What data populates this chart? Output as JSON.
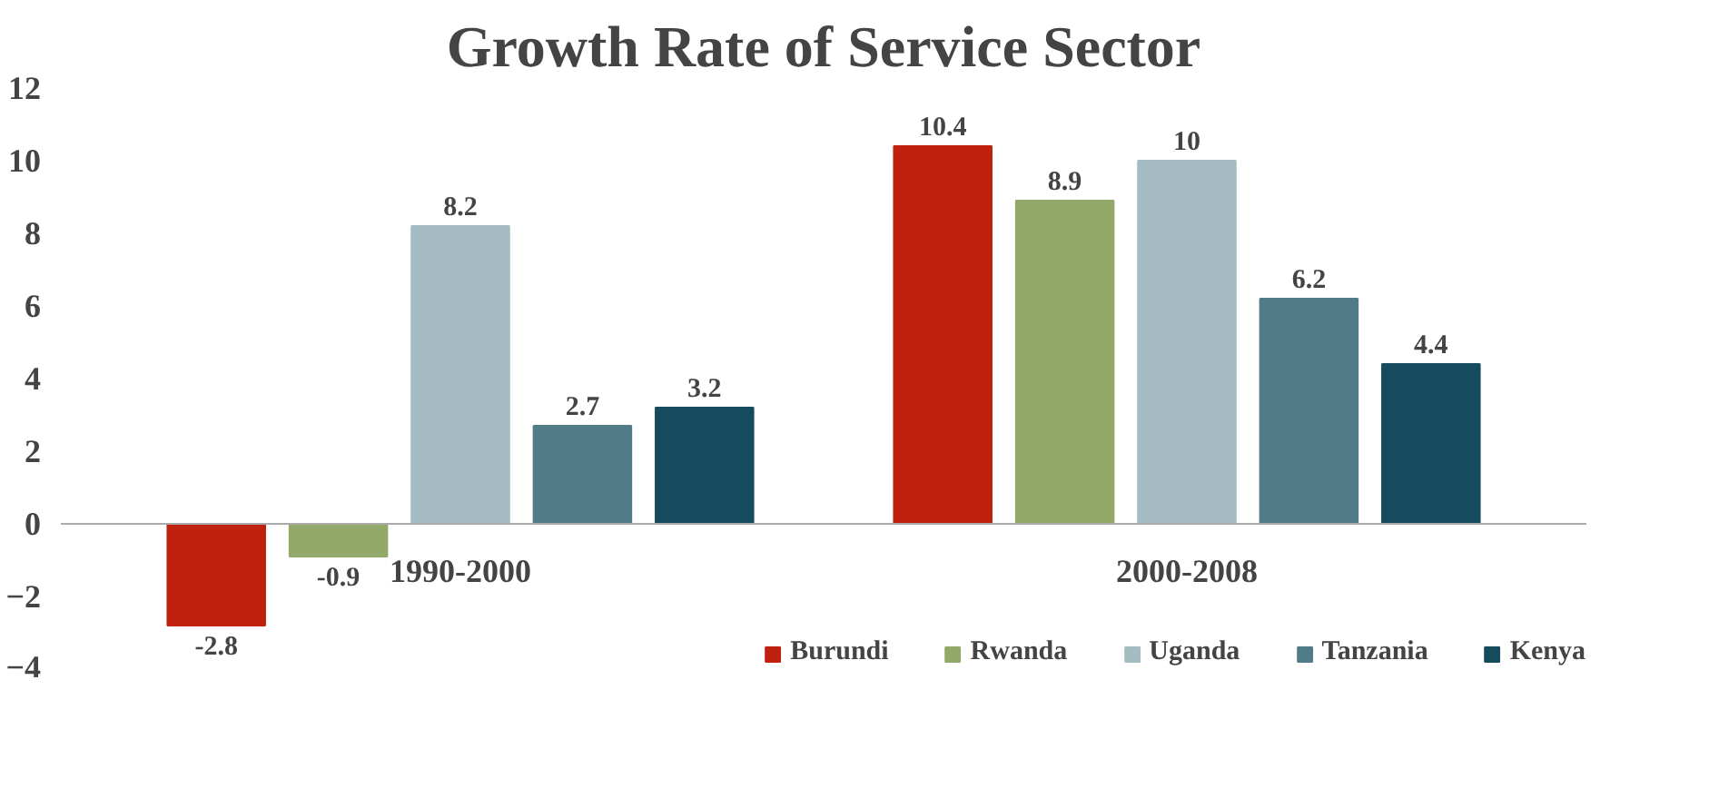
{
  "chart_data": {
    "type": "bar",
    "title": "Growth Rate of Service Sector",
    "categories": [
      "1990-2000",
      "2000-2008"
    ],
    "series": [
      {
        "name": "Burundi",
        "color": "#c0210f",
        "values": [
          -2.8,
          10.4
        ]
      },
      {
        "name": "Rwanda",
        "color": "#93a96a",
        "values": [
          -0.9,
          8.9
        ]
      },
      {
        "name": "Uganda",
        "color": "#a5bbc2",
        "values": [
          8.2,
          10
        ]
      },
      {
        "name": "Tanzania",
        "color": "#527b88",
        "values": [
          2.7,
          6.2
        ]
      },
      {
        "name": "Kenya",
        "color": "#164b5e",
        "values": [
          3.2,
          4.4
        ]
      }
    ],
    "ylim": [
      -4,
      12
    ],
    "yticks": [
      -4,
      -2,
      0,
      2,
      4,
      6,
      8,
      10,
      12
    ],
    "data_labels": true,
    "grid": false,
    "legend": "bottom"
  }
}
